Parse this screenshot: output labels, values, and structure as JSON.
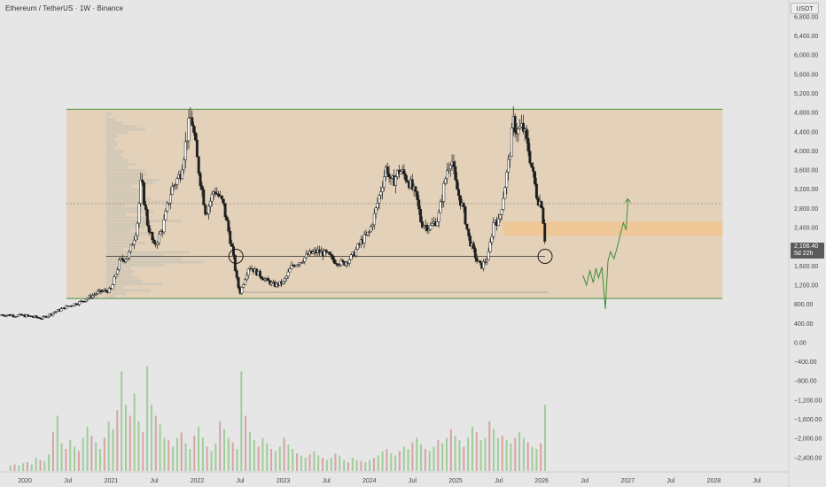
{
  "header": {
    "title": "Ethereum / TetherUS · 1W · Binance",
    "currency": "USDT"
  },
  "price_tag": {
    "price": "2,106.40",
    "countdown": "5d 22h"
  },
  "colors": {
    "background": "#e6e6e6",
    "range_box": "#e2ccb0",
    "range_border": "#4c8f3f",
    "support_zone": "#f1c48e",
    "candle_up": "#ffffff",
    "candle_down": "#1e1e1e",
    "volume_up": "#9fcd9a",
    "volume_down": "#d7a3a3",
    "projection": "#3e8f3a",
    "profile": "#cfc6b6"
  },
  "chart_data": {
    "type": "candlestick",
    "symbol": "Ethereum / TetherUS",
    "interval": "1W",
    "exchange": "Binance",
    "y_axis": {
      "ticks": [
        "6,800.00",
        "6,400.00",
        "6,000.00",
        "5,600.00",
        "5,200.00",
        "4,800.00",
        "4,400.00",
        "4,000.00",
        "3,600.00",
        "3,200.00",
        "2,800.00",
        "2,400.00",
        "2,000.00",
        "1,600.00",
        "1,200.00",
        "800.00",
        "400.00",
        "0.00",
        "−400.00",
        "−800.00",
        "−1,200.00",
        "−1,600.00",
        "−2,000.00",
        "−2,400.00"
      ],
      "tick_values": [
        6800,
        6400,
        6000,
        5600,
        5200,
        4800,
        4400,
        4000,
        3600,
        3200,
        2800,
        2400,
        2000,
        1600,
        1200,
        800,
        400,
        0,
        -400,
        -800,
        -1200,
        -1600,
        -2000,
        -2400
      ],
      "range": [
        -2700,
        7150
      ]
    },
    "x_axis": {
      "labels": [
        "2020",
        "Jul",
        "2021",
        "Jul",
        "2022",
        "Jul",
        "2023",
        "Jul",
        "2024",
        "Jul",
        "2025",
        "Jul",
        "2026",
        "Jul",
        "2027",
        "Jul",
        "2028",
        "Jul"
      ],
      "label_years": [
        2020.0,
        2020.5,
        2021.0,
        2021.5,
        2022.0,
        2022.5,
        2023.0,
        2023.5,
        2024.0,
        2024.5,
        2025.0,
        2025.5,
        2026.0,
        2026.5,
        2027.0,
        2027.5,
        2028.0,
        2028.5
      ],
      "range": [
        2019.71,
        2028.87
      ]
    },
    "range_box": {
      "top": 4870,
      "bottom": 920,
      "x_start": 2020.48,
      "x_end": 2028.1
    },
    "midline": 2900,
    "support_level": 1800,
    "lower_level": 1050,
    "support_zone": {
      "top": 2520,
      "bottom": 2230,
      "x_start": 2025.55,
      "x_end": 2028.1
    },
    "current_price": 2106.4,
    "touch_markers": [
      {
        "x": 2022.45,
        "y": 1800
      },
      {
        "x": 2026.04,
        "y": 1800
      }
    ],
    "price_path": [
      [
        2019.71,
        580
      ],
      [
        2020.0,
        560
      ],
      [
        2020.2,
        510
      ],
      [
        2020.35,
        640
      ],
      [
        2020.5,
        760
      ],
      [
        2020.65,
        850
      ],
      [
        2020.85,
        1050
      ],
      [
        2021.0,
        1100
      ],
      [
        2021.1,
        1700
      ],
      [
        2021.2,
        1800
      ],
      [
        2021.3,
        2400
      ],
      [
        2021.35,
        3400
      ],
      [
        2021.42,
        2500
      ],
      [
        2021.5,
        2000
      ],
      [
        2021.6,
        2400
      ],
      [
        2021.7,
        3200
      ],
      [
        2021.8,
        3500
      ],
      [
        2021.88,
        4300
      ],
      [
        2021.93,
        4750
      ],
      [
        2022.0,
        3800
      ],
      [
        2022.1,
        2700
      ],
      [
        2022.2,
        3200
      ],
      [
        2022.3,
        2900
      ],
      [
        2022.4,
        2000
      ],
      [
        2022.47,
        1200
      ],
      [
        2022.5,
        1050
      ],
      [
        2022.6,
        1600
      ],
      [
        2022.7,
        1450
      ],
      [
        2022.8,
        1300
      ],
      [
        2022.9,
        1200
      ],
      [
        2023.0,
        1250
      ],
      [
        2023.1,
        1600
      ],
      [
        2023.2,
        1700
      ],
      [
        2023.3,
        1850
      ],
      [
        2023.4,
        1900
      ],
      [
        2023.5,
        1850
      ],
      [
        2023.6,
        1700
      ],
      [
        2023.7,
        1650
      ],
      [
        2023.8,
        1800
      ],
      [
        2023.9,
        2100
      ],
      [
        2024.0,
        2300
      ],
      [
        2024.08,
        2800
      ],
      [
        2024.2,
        3700
      ],
      [
        2024.25,
        3300
      ],
      [
        2024.35,
        3600
      ],
      [
        2024.45,
        3400
      ],
      [
        2024.55,
        3000
      ],
      [
        2024.6,
        2500
      ],
      [
        2024.7,
        2400
      ],
      [
        2024.8,
        2600
      ],
      [
        2024.9,
        3600
      ],
      [
        2024.95,
        3900
      ],
      [
        2025.0,
        3300
      ],
      [
        2025.1,
        2700
      ],
      [
        2025.15,
        2200
      ],
      [
        2025.25,
        1700
      ],
      [
        2025.3,
        1580
      ],
      [
        2025.38,
        1800
      ],
      [
        2025.45,
        2600
      ],
      [
        2025.5,
        2500
      ],
      [
        2025.55,
        3000
      ],
      [
        2025.62,
        3800
      ],
      [
        2025.67,
        4600
      ],
      [
        2025.72,
        4400
      ],
      [
        2025.78,
        4500
      ],
      [
        2025.85,
        4000
      ],
      [
        2025.9,
        3500
      ],
      [
        2025.95,
        3000
      ],
      [
        2026.0,
        2900
      ],
      [
        2026.04,
        2106
      ]
    ],
    "projection_path": [
      [
        2026.48,
        1400
      ],
      [
        2026.52,
        1200
      ],
      [
        2026.56,
        1500
      ],
      [
        2026.6,
        1250
      ],
      [
        2026.63,
        1550
      ],
      [
        2026.66,
        1350
      ],
      [
        2026.7,
        1580
      ],
      [
        2026.74,
        700
      ],
      [
        2026.77,
        1700
      ],
      [
        2026.8,
        1900
      ],
      [
        2026.84,
        1750
      ],
      [
        2026.88,
        2000
      ],
      [
        2026.92,
        2300
      ],
      [
        2026.95,
        2500
      ],
      [
        2026.98,
        2350
      ],
      [
        2027.0,
        2900
      ]
    ],
    "projection_target": {
      "x": 2027.0,
      "y": 3000
    },
    "volume": {
      "baseline_value": -2700,
      "scale_note": "volume bars drawn as relative heights 0-1",
      "bars": [
        0.05,
        0.06,
        0.05,
        0.07,
        0.08,
        0.06,
        0.12,
        0.1,
        0.09,
        0.15,
        0.35,
        0.5,
        0.25,
        0.2,
        0.28,
        0.22,
        0.18,
        0.3,
        0.4,
        0.32,
        0.26,
        0.2,
        0.3,
        0.45,
        0.38,
        0.55,
        0.9,
        0.6,
        0.5,
        0.7,
        0.45,
        0.35,
        0.95,
        0.6,
        0.5,
        0.42,
        0.3,
        0.28,
        0.22,
        0.3,
        0.35,
        0.25,
        0.2,
        0.32,
        0.4,
        0.3,
        0.22,
        0.18,
        0.25,
        0.45,
        0.38,
        0.3,
        0.26,
        0.2,
        0.9,
        0.5,
        0.35,
        0.28,
        0.22,
        0.3,
        0.25,
        0.2,
        0.18,
        0.22,
        0.3,
        0.24,
        0.2,
        0.16,
        0.14,
        0.12,
        0.15,
        0.18,
        0.14,
        0.12,
        0.1,
        0.12,
        0.16,
        0.14,
        0.1,
        0.08,
        0.12,
        0.1,
        0.09,
        0.08,
        0.1,
        0.12,
        0.14,
        0.18,
        0.2,
        0.16,
        0.14,
        0.18,
        0.22,
        0.2,
        0.26,
        0.3,
        0.24,
        0.2,
        0.18,
        0.22,
        0.28,
        0.25,
        0.3,
        0.38,
        0.32,
        0.28,
        0.22,
        0.3,
        0.4,
        0.35,
        0.28,
        0.3,
        0.45,
        0.38,
        0.3,
        0.32,
        0.28,
        0.25,
        0.3,
        0.35,
        0.3,
        0.26,
        0.22,
        0.2,
        0.25,
        0.6
      ],
      "x_start": 2019.83,
      "x_end": 2026.04
    }
  }
}
